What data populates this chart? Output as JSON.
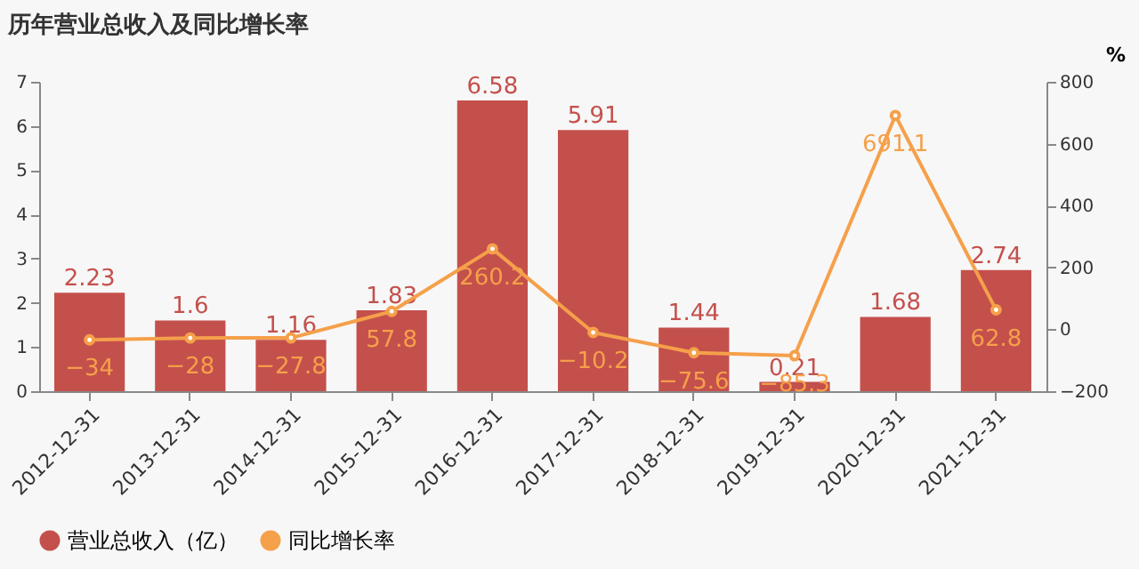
{
  "chart_data": {
    "type": "bar",
    "title": "历年营业总收入及同比增长率",
    "y2label": "%",
    "categories": [
      "2012-12-31",
      "2013-12-31",
      "2014-12-31",
      "2015-12-31",
      "2016-12-31",
      "2017-12-31",
      "2018-12-31",
      "2019-12-31",
      "2020-12-31",
      "2021-12-31"
    ],
    "series": [
      {
        "name": "营业总收入（亿）",
        "color": "#c4504c",
        "values": [
          2.23,
          1.6,
          1.16,
          1.83,
          6.58,
          5.91,
          1.44,
          0.21,
          1.68,
          2.74
        ]
      },
      {
        "name": "同比增长率",
        "type": "line",
        "axis": "y2",
        "color": "#f5a04a",
        "marker": "circle",
        "values": [
          -34,
          -28,
          -27.8,
          57.8,
          260.2,
          -10.2,
          -75.6,
          -85.3,
          691.1,
          62.8
        ]
      }
    ],
    "ylim": [
      0,
      7
    ],
    "yticks": [
      0,
      1,
      2,
      3,
      4,
      5,
      6,
      7
    ],
    "y2lim": [
      -200,
      800
    ],
    "y2ticks": [
      -200,
      0,
      200,
      400,
      600,
      800
    ],
    "data_labels": true,
    "grid": false,
    "legend": "bottom"
  }
}
